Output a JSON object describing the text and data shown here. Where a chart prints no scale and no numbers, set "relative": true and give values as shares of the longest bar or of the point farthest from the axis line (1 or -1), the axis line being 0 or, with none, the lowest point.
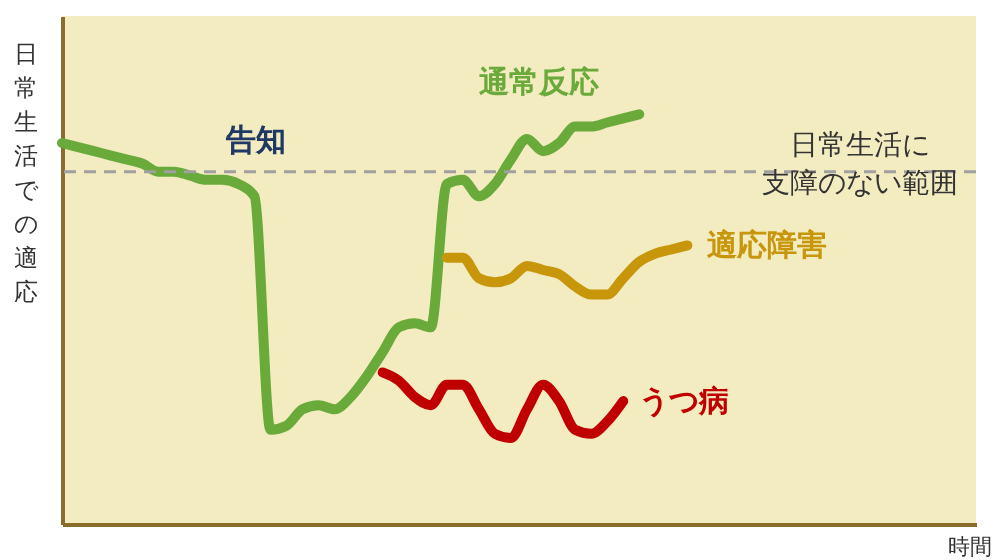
{
  "chart_data": {
    "type": "line",
    "relative": true,
    "xlabel": "時間",
    "ylabel": "日常生活での適応",
    "categories": [
      null,
      null,
      null,
      null,
      null,
      null,
      null,
      null,
      null,
      null,
      null,
      null,
      null,
      null,
      null,
      null,
      null,
      null,
      null,
      null,
      null,
      null,
      null,
      null,
      null,
      null,
      null,
      null,
      null,
      null,
      null,
      null,
      null,
      null,
      null,
      null,
      null,
      null,
      null,
      null,
      null,
      null,
      null,
      null,
      null,
      null,
      null,
      null,
      null,
      null,
      null,
      null,
      null,
      null,
      null,
      null,
      null,
      null
    ],
    "series": [
      {
        "name": "通常反応",
        "color": "#6aaa3a",
        "values": [
          0.93,
          0.92,
          0.91,
          0.9,
          0.89,
          0.88,
          0.86,
          0.86,
          0.85,
          0.84,
          0.84,
          0.83,
          0.8,
          0.23,
          0.24,
          0.28,
          0.29,
          0.28,
          0.31,
          0.36,
          0.42,
          0.48,
          0.49,
          0.48,
          0.83,
          0.84,
          0.8,
          0.83,
          0.89,
          0.94,
          0.91,
          0.93,
          0.97,
          0.97,
          0.98,
          0.99,
          1.0,
          null,
          null,
          null,
          null,
          null,
          null,
          null,
          null,
          null,
          null,
          null,
          null,
          null,
          null,
          null,
          null,
          null,
          null,
          null,
          null,
          null
        ]
      },
      {
        "name": "適応障害",
        "color": "#c8960a",
        "values": [
          null,
          null,
          null,
          null,
          null,
          null,
          null,
          null,
          null,
          null,
          null,
          null,
          null,
          null,
          null,
          null,
          null,
          null,
          null,
          null,
          null,
          null,
          null,
          null,
          0.65,
          0.65,
          0.6,
          0.59,
          0.6,
          0.63,
          0.62,
          0.61,
          0.58,
          0.56,
          0.56,
          0.6,
          0.64,
          0.66,
          0.67,
          0.68,
          null,
          null,
          null,
          null,
          null,
          null,
          null,
          null,
          null,
          null,
          null,
          null,
          null,
          null,
          null,
          null,
          null,
          null
        ]
      },
      {
        "name": "うつ病",
        "color": "#c00000",
        "values": [
          null,
          null,
          null,
          null,
          null,
          null,
          null,
          null,
          null,
          null,
          null,
          null,
          null,
          null,
          null,
          null,
          null,
          null,
          null,
          null,
          0.37,
          0.35,
          0.31,
          0.29,
          0.34,
          0.34,
          0.28,
          0.22,
          0.21,
          0.28,
          0.34,
          0.3,
          0.23,
          0.22,
          0.25,
          0.3,
          null,
          null,
          null,
          null,
          null,
          null,
          null,
          null,
          null,
          null,
          null,
          null,
          null,
          null,
          null,
          null,
          null,
          null,
          null,
          null,
          null,
          null
        ]
      }
    ],
    "ref_lines": [
      {
        "axis": "y",
        "value": 0.86,
        "label": "日常生活に支障のない範囲",
        "color": "#a0a0a0",
        "line_style": "dashed"
      }
    ],
    "annotations": [
      "告知"
    ],
    "legend": false,
    "grid": false,
    "tick_labels": false,
    "line_style": "solid",
    "marker": "none"
  }
}
